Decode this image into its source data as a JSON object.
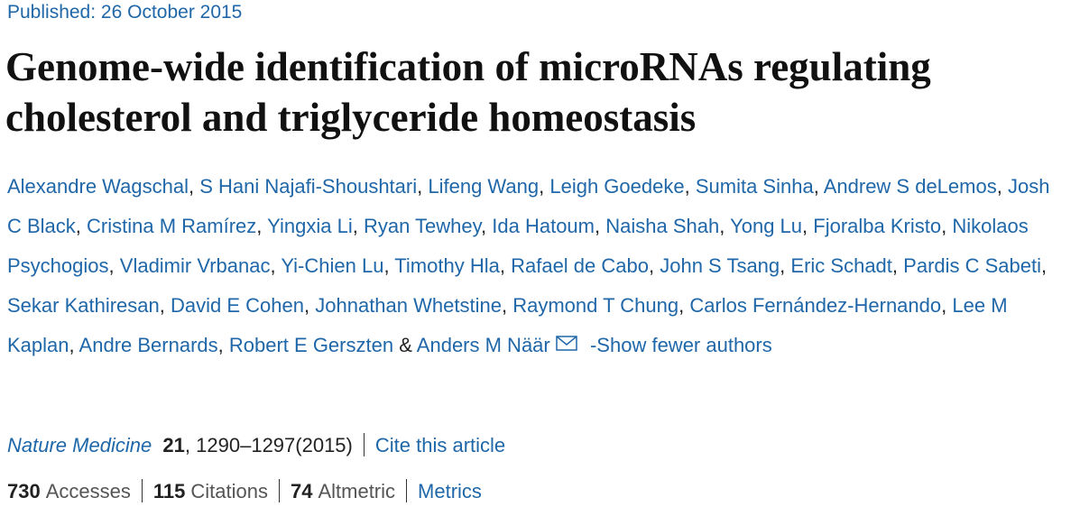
{
  "published": {
    "label": "Published:",
    "date": "26 October 2015"
  },
  "title": "Genome-wide identification of microRNAs regulating cholesterol and triglyceride homeostasis",
  "authors": [
    "Alexandre Wagschal",
    "S Hani Najafi-Shoushtari",
    "Lifeng Wang",
    "Leigh Goedeke",
    "Sumita Sinha",
    "Andrew S deLemos",
    "Josh C Black",
    "Cristina M Ramírez",
    "Yingxia Li",
    "Ryan Tewhey",
    "Ida Hatoum",
    "Naisha Shah",
    "Yong Lu",
    "Fjoralba Kristo",
    "Nikolaos Psychogios",
    "Vladimir Vrbanac",
    "Yi-Chien Lu",
    "Timothy Hla",
    "Rafael de Cabo",
    "John S Tsang",
    "Eric Schadt",
    "Pardis C Sabeti",
    "Sekar Kathiresan",
    "David E Cohen",
    "Johnathan Whetstine",
    "Raymond T Chung",
    "Carlos Fernández-Hernando",
    "Lee M Kaplan",
    "Andre Bernards",
    "Robert E Gerszten",
    "Anders M Näär"
  ],
  "author_separator": ",",
  "last_author_separator": "&",
  "show_fewer": "-Show fewer authors",
  "journal": {
    "name": "Nature Medicine",
    "volume": "21",
    "separator": ",",
    "pages": "1290–1297(2015)",
    "cite": "Cite this article"
  },
  "metrics": [
    {
      "value": 730,
      "label": "Accesses"
    },
    {
      "value": 115,
      "label": "Citations"
    },
    {
      "value": 74,
      "label": "Altmetric"
    }
  ],
  "metrics_link": "Metrics"
}
